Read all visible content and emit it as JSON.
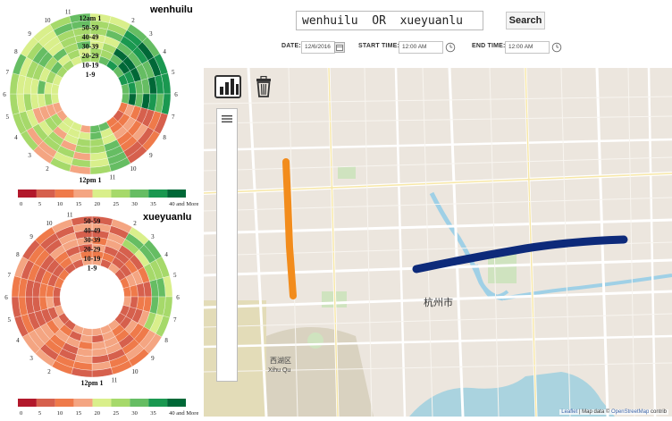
{
  "charts": [
    {
      "title": "wenhuilu",
      "rings": [
        "12am 1",
        "50-59",
        "40-49",
        "30-39",
        "20-29",
        "10-19",
        "1-9"
      ],
      "bottom_label": "12pm 1"
    },
    {
      "title": "xueyuanlu",
      "rings": [
        "50-59",
        "40-49",
        "30-39",
        "20-29",
        "10-19",
        "1-9"
      ],
      "bottom_label": "12pm 1"
    }
  ],
  "hour_labels": [
    "10",
    "11",
    "2",
    "3",
    "4",
    "5",
    "6",
    "7",
    "8",
    "9",
    "10",
    "11",
    "2",
    "3",
    "4",
    "5",
    "6",
    "7",
    "8",
    "9"
  ],
  "legend": {
    "ticks": [
      "0",
      "5",
      "10",
      "15",
      "20",
      "25",
      "30",
      "35",
      "40 and More"
    ],
    "colors": [
      "#b2182b",
      "#d6604d",
      "#ef7a4a",
      "#f4a582",
      "#d9ef8b",
      "#a6d96a",
      "#66bd63",
      "#1a9850",
      "#006837"
    ]
  },
  "search": {
    "value": "wenhuilu  OR  xueyuanlu",
    "button": "Search"
  },
  "filters": {
    "date_label": "DATE:",
    "date_value": "12/6/2016",
    "start_label": "START TIME:",
    "start_value": "12:00 AM",
    "end_label": "END TIME:",
    "end_value": "12:00 AM"
  },
  "tools": {
    "chart": "bar-chart-icon",
    "trash": "trash-icon",
    "menu": "menu-icon"
  },
  "map": {
    "city_label": "杭州市",
    "district_label": "西湖区",
    "district_pinyin": "Xihu Qu",
    "road_colors": {
      "wenhuilu": "#0d2a7a",
      "xueyuanlu": "#f28c1c"
    }
  },
  "attribution": {
    "leaflet": "Leaflet",
    "sep": " | Map data © ",
    "osm": "OpenStreetMap",
    "rest": " contrib"
  }
}
